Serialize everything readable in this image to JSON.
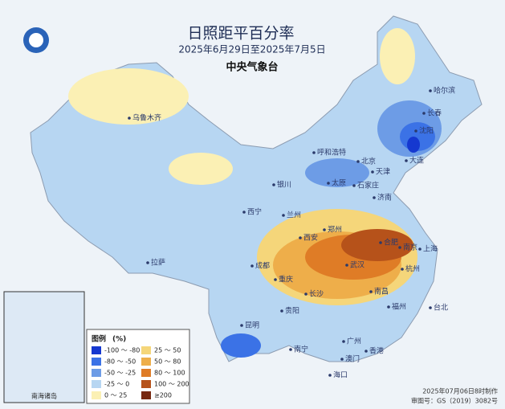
{
  "header": {
    "title": "日照距平百分率",
    "subtitle": "2025年6月29日至2025年7月5日",
    "agency": "中央气象台"
  },
  "legend": {
    "title": "图例",
    "unit": "(%)",
    "items": [
      {
        "label": "-100 ～ -80",
        "color": "#1538d0"
      },
      {
        "label": "-80 ～ -50",
        "color": "#3b72e6"
      },
      {
        "label": "-50 ～ -25",
        "color": "#6d9ce6"
      },
      {
        "label": "-25 ～ 0",
        "color": "#b7d6f2"
      },
      {
        "label": "0 ～ 25",
        "color": "#fbf0b4"
      },
      {
        "label": "25 ～ 50",
        "color": "#f5d67a"
      },
      {
        "label": "50 ～ 80",
        "color": "#eeae4a"
      },
      {
        "label": "80 ～ 100",
        "color": "#df7c26"
      },
      {
        "label": "100 ～ 200",
        "color": "#b6521a"
      },
      {
        "label": "≥200",
        "color": "#772810"
      }
    ]
  },
  "cities": [
    "乌鲁木齐",
    "哈尔滨",
    "长春",
    "沈阳",
    "呼和浩特",
    "北京",
    "天津",
    "大连",
    "太原",
    "石家庄",
    "济南",
    "银川",
    "兰州",
    "西宁",
    "西安",
    "郑州",
    "合肥",
    "南京",
    "上海",
    "杭州",
    "武汉",
    "成都",
    "重庆",
    "长沙",
    "南昌",
    "贵阳",
    "福州",
    "台北",
    "昆明",
    "南宁",
    "广州",
    "香港",
    "澳门",
    "海口",
    "拉萨"
  ],
  "inset": {
    "label": "南海诸岛"
  },
  "footer": {
    "made": "2025年07月06日8时制作",
    "approval": "审图号：GS（2019）3082号"
  }
}
